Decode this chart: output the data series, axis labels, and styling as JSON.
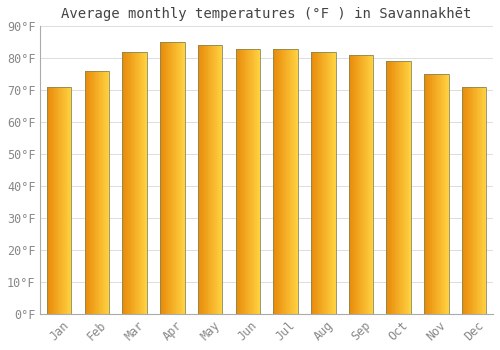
{
  "title": "Average monthly temperatures (°F ) in Savannakhēt",
  "months": [
    "Jan",
    "Feb",
    "Mar",
    "Apr",
    "May",
    "Jun",
    "Jul",
    "Aug",
    "Sep",
    "Oct",
    "Nov",
    "Dec"
  ],
  "values": [
    71,
    76,
    82,
    85,
    84,
    83,
    83,
    82,
    81,
    79,
    75,
    71
  ],
  "bar_color_left": "#E8890A",
  "bar_color_right": "#FFD040",
  "bar_edge_color": "#888855",
  "background_color": "#FFFFFF",
  "plot_bg_color": "#FFFFFF",
  "grid_color": "#DDDDDD",
  "ylim": [
    0,
    90
  ],
  "yticks": [
    0,
    10,
    20,
    30,
    40,
    50,
    60,
    70,
    80,
    90
  ],
  "ytick_labels": [
    "0°F",
    "10°F",
    "20°F",
    "30°F",
    "40°F",
    "50°F",
    "60°F",
    "70°F",
    "80°F",
    "90°F"
  ],
  "title_fontsize": 10,
  "tick_fontsize": 8.5,
  "bar_width": 0.65
}
